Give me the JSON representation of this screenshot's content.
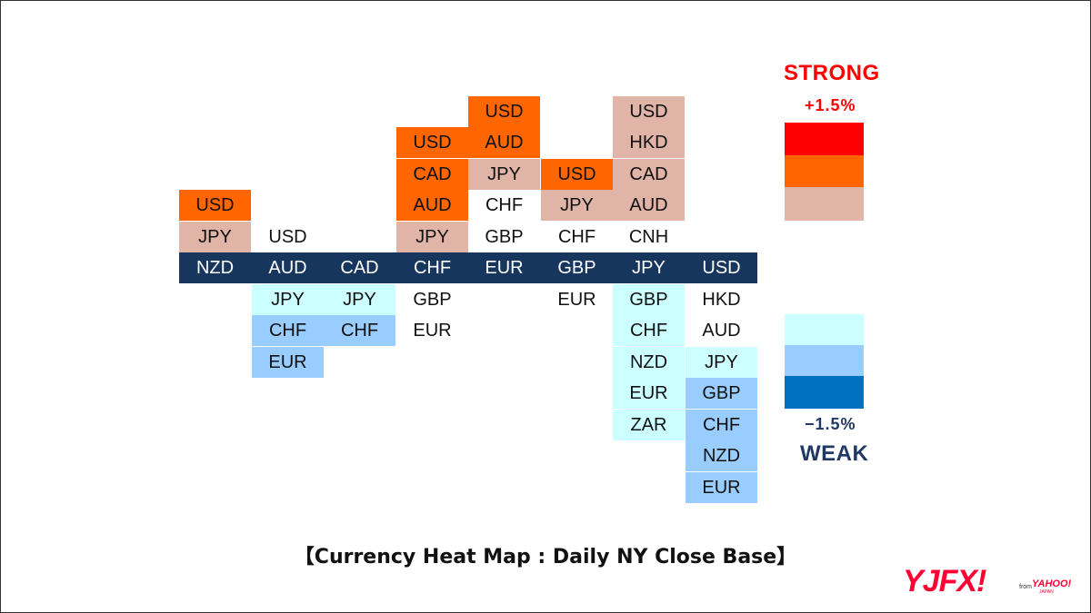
{
  "chart_data": {
    "type": "heatmap",
    "caption": "【Currency Heat Map : Daily NY Close Base】",
    "legend": {
      "strong_label": "STRONG",
      "max_label": "+1.5%",
      "min_label": "−1.5%",
      "weak_label": "WEAK",
      "colors": [
        "#ff0000",
        "#ff6600",
        "#e0b4a6",
        "#ccffff",
        "#99ccff",
        "#0070c0"
      ]
    },
    "color_scale": {
      "strong": "#ff6600",
      "mild_strong": "#e0b4a6",
      "neutral": "#ffffff",
      "mild_weak": "#ccffff",
      "weak": "#99ccff",
      "base": "#17365d"
    },
    "columns": [
      {
        "base": "NZD",
        "above": [
          {
            "c": "JPY",
            "level": "mild_strong"
          },
          {
            "c": "USD",
            "level": "strong"
          }
        ],
        "below": []
      },
      {
        "base": "AUD",
        "above": [
          {
            "c": "USD",
            "level": "neutral"
          }
        ],
        "below": [
          {
            "c": "JPY",
            "level": "mild_weak"
          },
          {
            "c": "CHF",
            "level": "weak"
          },
          {
            "c": "EUR",
            "level": "weak"
          }
        ]
      },
      {
        "base": "CAD",
        "above": [],
        "below": [
          {
            "c": "JPY",
            "level": "mild_weak"
          },
          {
            "c": "CHF",
            "level": "weak"
          }
        ]
      },
      {
        "base": "CHF",
        "above": [
          {
            "c": "JPY",
            "level": "mild_strong"
          },
          {
            "c": "AUD",
            "level": "strong"
          },
          {
            "c": "CAD",
            "level": "strong"
          },
          {
            "c": "USD",
            "level": "strong"
          }
        ],
        "below": [
          {
            "c": "GBP",
            "level": "neutral"
          },
          {
            "c": "EUR",
            "level": "neutral"
          }
        ]
      },
      {
        "base": "EUR",
        "above": [
          {
            "c": "GBP",
            "level": "neutral"
          },
          {
            "c": "CHF",
            "level": "neutral"
          },
          {
            "c": "JPY",
            "level": "mild_strong"
          },
          {
            "c": "AUD",
            "level": "strong"
          },
          {
            "c": "USD",
            "level": "strong"
          }
        ],
        "below": []
      },
      {
        "base": "GBP",
        "above": [
          {
            "c": "CHF",
            "level": "neutral"
          },
          {
            "c": "JPY",
            "level": "mild_strong"
          },
          {
            "c": "USD",
            "level": "strong"
          }
        ],
        "below": [
          {
            "c": "EUR",
            "level": "neutral"
          }
        ]
      },
      {
        "base": "JPY",
        "above": [
          {
            "c": "CNH",
            "level": "neutral"
          },
          {
            "c": "AUD",
            "level": "mild_strong"
          },
          {
            "c": "CAD",
            "level": "mild_strong"
          },
          {
            "c": "HKD",
            "level": "mild_strong"
          },
          {
            "c": "USD",
            "level": "mild_strong"
          }
        ],
        "below": [
          {
            "c": "GBP",
            "level": "mild_weak"
          },
          {
            "c": "CHF",
            "level": "mild_weak"
          },
          {
            "c": "NZD",
            "level": "mild_weak"
          },
          {
            "c": "EUR",
            "level": "mild_weak"
          },
          {
            "c": "ZAR",
            "level": "mild_weak"
          }
        ]
      },
      {
        "base": "USD",
        "above": [],
        "below": [
          {
            "c": "HKD",
            "level": "neutral"
          },
          {
            "c": "AUD",
            "level": "neutral"
          },
          {
            "c": "JPY",
            "level": "mild_weak"
          },
          {
            "c": "GBP",
            "level": "weak"
          },
          {
            "c": "CHF",
            "level": "weak"
          },
          {
            "c": "NZD",
            "level": "weak"
          },
          {
            "c": "EUR",
            "level": "weak"
          }
        ]
      }
    ]
  },
  "logo": {
    "brand": "YJFX!",
    "from_text": "from",
    "partner": "YAHOO!",
    "partner_sub": "JAPAN"
  }
}
